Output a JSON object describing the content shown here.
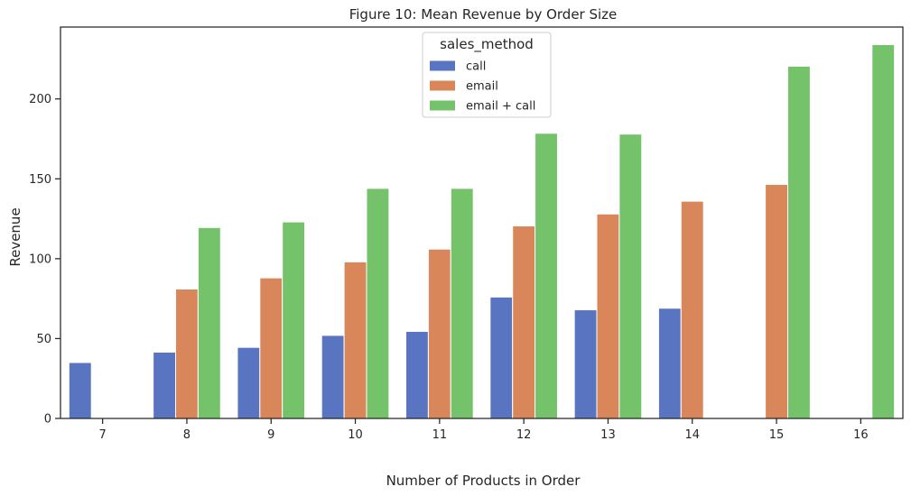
{
  "chart_data": {
    "type": "bar",
    "title": "Figure 10: Mean Revenue by Order Size",
    "xlabel": "Number of Products in Order",
    "ylabel": "Revenue",
    "categories": [
      "7",
      "8",
      "9",
      "10",
      "11",
      "12",
      "13",
      "14",
      "15",
      "16"
    ],
    "ylim": [
      0,
      245
    ],
    "yticks": [
      0,
      50,
      100,
      150,
      200
    ],
    "grid": false,
    "legend": {
      "title": "sales_method",
      "placement": "top-center"
    },
    "series": [
      {
        "name": "call",
        "color": "#5975c1",
        "values": [
          35,
          41.5,
          44.5,
          52,
          54.5,
          76,
          68,
          69,
          null,
          null
        ]
      },
      {
        "name": "email",
        "color": "#d9865b",
        "values": [
          null,
          81,
          88,
          98,
          106,
          120.5,
          128,
          136,
          146.5,
          null
        ]
      },
      {
        "name": "email + call",
        "color": "#74c26a",
        "values": [
          null,
          119.5,
          123,
          144,
          144,
          178.5,
          178,
          null,
          220.5,
          234
        ]
      }
    ]
  }
}
